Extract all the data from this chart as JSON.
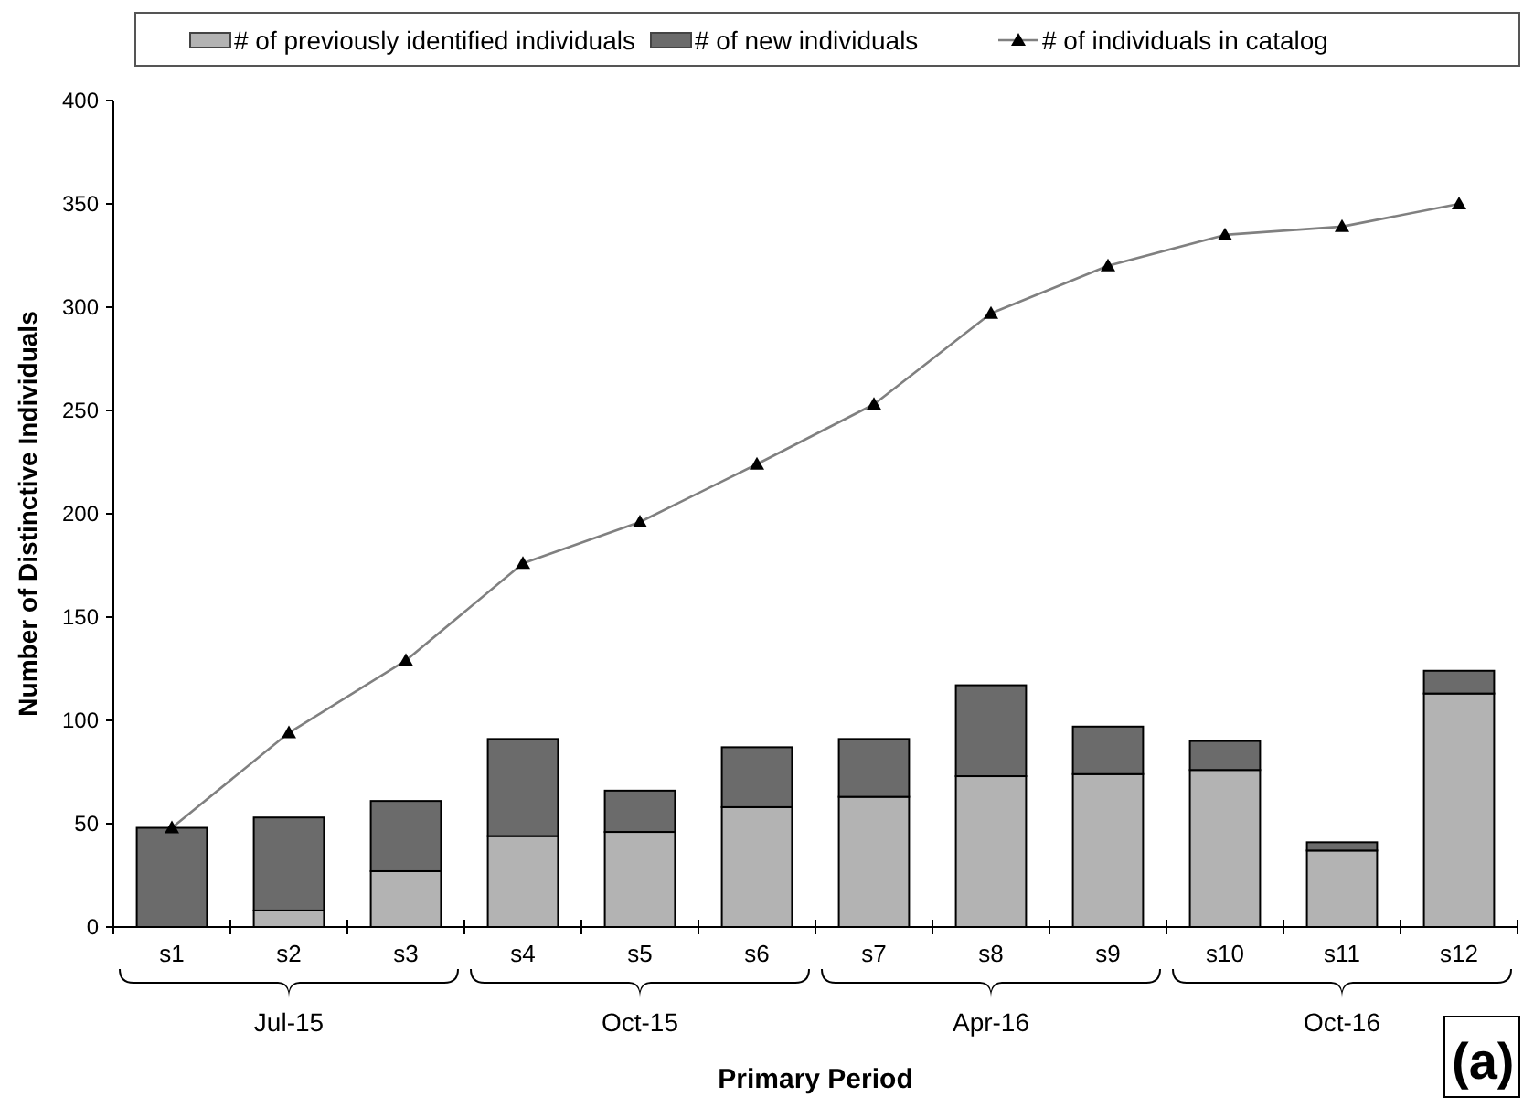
{
  "chart_data": {
    "type": "bar",
    "stacked": true,
    "xlabel": "Primary Period",
    "ylabel": "Number of Distinctive Individuals",
    "categories": [
      "s1",
      "s2",
      "s3",
      "s4",
      "s5",
      "s6",
      "s7",
      "s8",
      "s9",
      "s10",
      "s11",
      "s12"
    ],
    "ylim": [
      0,
      400
    ],
    "yticks": [
      0,
      50,
      100,
      150,
      200,
      250,
      300,
      350,
      400
    ],
    "grid": false,
    "legend": "top",
    "series": [
      {
        "name": "# of previously identified individuals",
        "color": "#b3b3b3",
        "values": [
          0,
          8,
          27,
          44,
          46,
          58,
          63,
          73,
          74,
          76,
          37,
          113
        ]
      },
      {
        "name": "# of new individuals",
        "color": "#6b6b6b",
        "values": [
          48,
          45,
          34,
          47,
          20,
          29,
          28,
          44,
          23,
          14,
          4,
          11
        ]
      },
      {
        "name": "# of individuals in catalog",
        "type": "line",
        "color": "#808080",
        "marker": "triangle",
        "values": [
          48,
          94,
          129,
          176,
          196,
          224,
          253,
          297,
          320,
          335,
          339,
          350
        ]
      }
    ],
    "annotations": [
      "Jul-15",
      "Oct-15",
      "Apr-16",
      "Oct-16",
      "(a)"
    ]
  }
}
